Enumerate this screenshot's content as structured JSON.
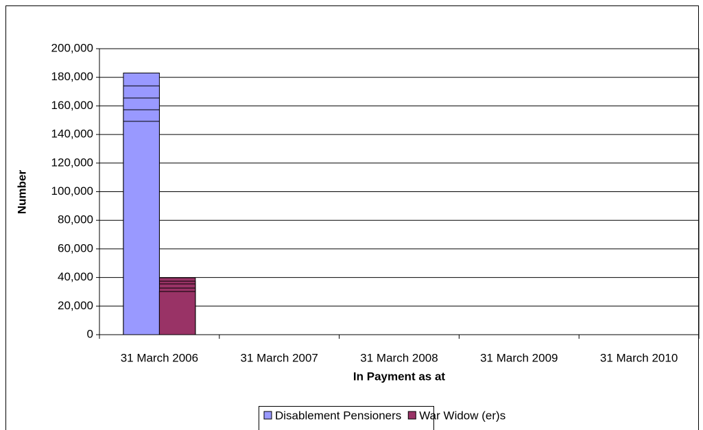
{
  "chart_data": {
    "type": "bar",
    "x_label": "In Payment as at",
    "y_label": "Number",
    "categories": [
      "31 March 2006",
      "31 March 2007",
      "31 March 2008",
      "31 March 2009",
      "31 March 2010"
    ],
    "series": [
      {
        "name": "Disablement Pensioners",
        "color": "#9999ff",
        "values": [
          183000,
          174000,
          165500,
          157300,
          149200
        ]
      },
      {
        "name": "War Widow (er)s",
        "color": "#993366",
        "values": [
          39800,
          37400,
          35500,
          32600,
          30200
        ]
      }
    ],
    "ylim": [
      0,
      200000
    ],
    "yticks": [
      0,
      {
        "value": 20000,
        "label": "20,000"
      },
      {
        "value": 40000,
        "label": "40,000"
      },
      {
        "value": 60000,
        "label": "60,000"
      },
      {
        "value": 80000,
        "label": "80,000"
      },
      {
        "value": 100000,
        "label": "100,000"
      },
      {
        "value": 120000,
        "label": "120,000"
      },
      {
        "value": 140000,
        "label": "140,000"
      },
      {
        "value": 160000,
        "label": "160,000"
      },
      {
        "value": 180000,
        "label": "180,000"
      },
      {
        "value": 200000,
        "label": "200,000"
      }
    ],
    "grid": true,
    "legend": "bottom"
  }
}
